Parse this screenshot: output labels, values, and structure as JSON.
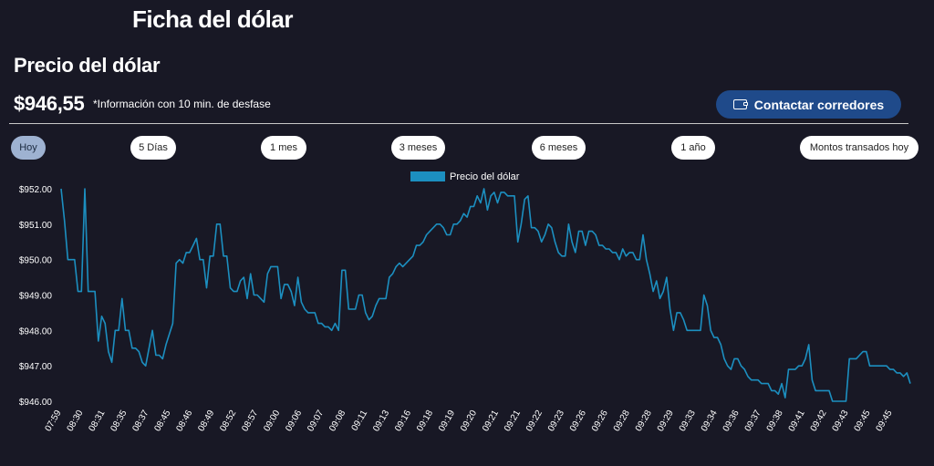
{
  "header": {
    "title": "Ficha del dólar"
  },
  "section": {
    "title": "Precio del dólar",
    "price": "$946,55",
    "note": "*Información con 10 min. de desfase",
    "contact_button": "Contactar corredores"
  },
  "tabs": [
    {
      "label": "Hoy",
      "active": true
    },
    {
      "label": "5 Días",
      "active": false
    },
    {
      "label": "1 mes",
      "active": false
    },
    {
      "label": "3 meses",
      "active": false
    },
    {
      "label": "6 meses",
      "active": false
    },
    {
      "label": "1 año",
      "active": false
    },
    {
      "label": "Montos transados hoy",
      "active": false
    }
  ],
  "colors": {
    "line": "#1c8fc0",
    "background": "#181825",
    "button": "#1f4a8a",
    "active_tab": "#9eb2d1"
  },
  "icons": {
    "contact": "wallet-icon"
  },
  "chart_data": {
    "type": "line",
    "title": "",
    "xlabel": "",
    "ylabel": "",
    "legend": "Precio del dólar",
    "legend_position": "top",
    "grid": false,
    "ylim": [
      946.0,
      952.0
    ],
    "y_ticks": [
      "$946.00",
      "$947.00",
      "$948.00",
      "$949.00",
      "$950.00",
      "$951.00",
      "$952.00"
    ],
    "x_ticks": [
      "07:59",
      "08:30",
      "08:31",
      "08:35",
      "08:37",
      "08:45",
      "08:46",
      "08:49",
      "08:52",
      "08:57",
      "09:00",
      "09:06",
      "09:07",
      "09:08",
      "09:11",
      "09:13",
      "09:16",
      "09:18",
      "09:19",
      "09:20",
      "09:21",
      "09:21",
      "09:22",
      "09:23",
      "09:26",
      "09:26",
      "09:28",
      "09:28",
      "09:29",
      "09:33",
      "09:34",
      "09:36",
      "09:37",
      "09:38",
      "09:41",
      "09:42",
      "09:43",
      "09:45",
      "09:45"
    ],
    "series": [
      {
        "name": "Precio del dólar",
        "values": [
          952.0,
          951.1,
          950.0,
          950.0,
          950.0,
          949.1,
          949.1,
          952.0,
          949.1,
          949.1,
          949.1,
          947.7,
          948.4,
          948.2,
          947.4,
          947.1,
          948.0,
          948.0,
          948.9,
          948.0,
          948.0,
          947.5,
          947.5,
          947.4,
          947.1,
          947.0,
          947.5,
          948.0,
          947.3,
          947.3,
          947.2,
          947.6,
          947.9,
          948.2,
          949.9,
          950.0,
          949.9,
          950.2,
          950.2,
          950.4,
          950.6,
          950.0,
          950.0,
          949.2,
          950.1,
          950.1,
          951.0,
          951.0,
          950.1,
          950.1,
          949.2,
          949.1,
          949.1,
          949.4,
          949.5,
          948.9,
          949.6,
          949.0,
          949.0,
          948.9,
          948.8,
          949.6,
          949.8,
          949.8,
          949.8,
          948.9,
          949.3,
          949.3,
          949.1,
          948.7,
          949.5,
          948.8,
          948.6,
          948.5,
          948.5,
          948.5,
          948.2,
          948.2,
          948.1,
          948.1,
          948.0,
          948.2,
          948.0,
          949.7,
          949.7,
          948.6,
          948.6,
          948.6,
          949.0,
          949.0,
          948.5,
          948.3,
          948.4,
          948.7,
          948.9,
          948.9,
          948.9,
          949.5,
          949.6,
          949.8,
          949.9,
          949.8,
          949.9,
          950.0,
          950.1,
          950.4,
          950.4,
          950.5,
          950.7,
          950.8,
          950.9,
          951.0,
          951.0,
          950.9,
          950.7,
          950.7,
          951.0,
          951.0,
          951.1,
          951.3,
          951.2,
          951.5,
          951.5,
          951.8,
          951.6,
          952.0,
          951.4,
          951.8,
          951.9,
          951.6,
          951.9,
          951.9,
          951.8,
          951.8,
          951.8,
          950.5,
          951.0,
          951.7,
          951.8,
          950.9,
          950.9,
          950.8,
          950.5,
          950.7,
          951.0,
          950.9,
          950.5,
          950.2,
          950.1,
          950.1,
          951.0,
          950.5,
          950.2,
          950.8,
          950.8,
          950.4,
          950.8,
          950.8,
          950.7,
          950.4,
          950.4,
          950.3,
          950.3,
          950.2,
          950.2,
          950.0,
          950.3,
          950.1,
          950.2,
          950.2,
          950.0,
          950.0,
          950.7,
          950.0,
          949.6,
          949.1,
          949.4,
          948.9,
          949.1,
          949.5,
          948.6,
          948.0,
          948.5,
          948.5,
          948.3,
          948.0,
          948.0,
          948.0,
          948.0,
          948.0,
          949.0,
          948.7,
          948.0,
          947.8,
          947.8,
          947.6,
          947.2,
          947.0,
          946.9,
          947.2,
          947.2,
          947.0,
          946.9,
          946.7,
          946.6,
          946.6,
          946.6,
          946.5,
          946.5,
          946.5,
          946.3,
          946.3,
          946.2,
          946.5,
          946.1,
          946.9,
          946.9,
          946.9,
          947.0,
          947.0,
          947.2,
          947.6,
          946.6,
          946.3,
          946.3,
          946.3,
          946.3,
          946.3,
          946.0,
          946.0,
          946.0,
          946.0,
          946.0,
          947.2,
          947.2,
          947.2,
          947.3,
          947.4,
          947.4,
          947.0,
          947.0,
          947.0,
          947.0,
          947.0,
          947.0,
          946.9,
          946.9,
          946.8,
          946.8,
          946.7,
          946.8,
          946.5
        ]
      }
    ]
  }
}
